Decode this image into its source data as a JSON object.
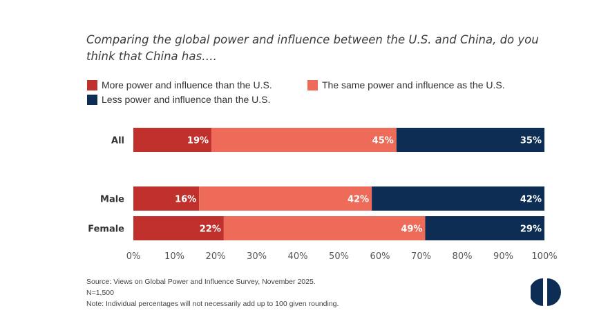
{
  "chart_data": {
    "type": "bar",
    "orientation": "horizontal",
    "stacked": true,
    "title": "Comparing the global power and influence between the U.S. and China, do you think that China has….",
    "categories": [
      "All",
      "Male",
      "Female"
    ],
    "series": [
      {
        "name": "More power and influence than the U.S.",
        "color": "#c0312d",
        "values": [
          19,
          16,
          22
        ]
      },
      {
        "name": "The same power and influence as the U.S.",
        "color": "#ee6a59",
        "values": [
          45,
          42,
          49
        ]
      },
      {
        "name": "Less power and influence than the U.S.",
        "color": "#0d2d54",
        "values": [
          35,
          42,
          29
        ]
      }
    ],
    "data_labels": [
      [
        "19%",
        "45%",
        "35%"
      ],
      [
        "16%",
        "42%",
        "42%"
      ],
      [
        "22%",
        "49%",
        "29%"
      ]
    ],
    "xlim": [
      0,
      100
    ],
    "ticks": [
      0,
      10,
      20,
      30,
      40,
      50,
      60,
      70,
      80,
      90,
      100
    ],
    "tick_labels": [
      "0%",
      "10%",
      "20%",
      "30%",
      "40%",
      "50%",
      "60%",
      "70%",
      "80%",
      "90%",
      "100%"
    ],
    "xlabel": "",
    "ylabel": "",
    "grid": false,
    "legend_position": "top-left"
  },
  "legend": {
    "items": [
      "More power and influence than the U.S.",
      "The same power and influence as the U.S.",
      "Less power and influence than the U.S."
    ]
  },
  "notes": {
    "source": "Source: Views on Global Power and Influence Survey, November 2025.",
    "n": "N=1,500",
    "note": "Note: Individual percentages will not necessarily add up to 100 given rounding."
  },
  "logo": {
    "icon": "half-circle-logo-icon",
    "color": "#0d2d54"
  }
}
